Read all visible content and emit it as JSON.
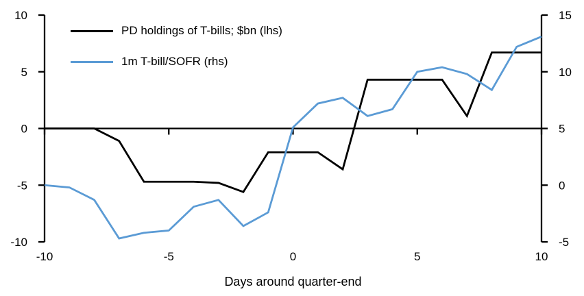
{
  "chart_data": {
    "type": "line",
    "title": "",
    "xlabel": "Days around quarter-end",
    "x": [
      -10,
      -9,
      -8,
      -7,
      -6,
      -5,
      -4,
      -3,
      -2,
      -1,
      0,
      1,
      2,
      3,
      4,
      5,
      6,
      7,
      8,
      9,
      10
    ],
    "series": [
      {
        "name": "PD holdings of T-bills; $bn (lhs)",
        "axis": "left",
        "color": "#000000",
        "values": [
          0,
          0,
          0,
          -1.1,
          -4.7,
          -4.7,
          -4.7,
          -4.8,
          -5.6,
          -2.1,
          -2.1,
          -2.1,
          -3.6,
          4.3,
          4.3,
          4.3,
          4.3,
          1.1,
          6.7,
          6.7,
          6.7
        ]
      },
      {
        "name": "1m T-bill/SOFR (rhs)",
        "axis": "right",
        "color": "#5B9BD5",
        "values": [
          0,
          -0.2,
          -1.3,
          -4.7,
          -4.2,
          -4.0,
          -1.9,
          -1.3,
          -3.6,
          -2.4,
          5.1,
          7.2,
          7.7,
          6.1,
          6.7,
          10.0,
          10.4,
          9.8,
          8.4,
          12.2,
          13.1
        ]
      }
    ],
    "left_axis": {
      "min": -10,
      "max": 10,
      "ticks": [
        10,
        5,
        0,
        -5,
        -10
      ]
    },
    "right_axis": {
      "min": -5,
      "max": 15,
      "ticks": [
        15,
        10,
        5,
        0,
        -5
      ]
    },
    "x_axis": {
      "min": -10,
      "max": 10,
      "ticks": [
        -10,
        -5,
        0,
        5,
        10
      ]
    },
    "legend_position": "top-left",
    "grid": false,
    "axis_color": "#000000",
    "background": "#ffffff"
  }
}
